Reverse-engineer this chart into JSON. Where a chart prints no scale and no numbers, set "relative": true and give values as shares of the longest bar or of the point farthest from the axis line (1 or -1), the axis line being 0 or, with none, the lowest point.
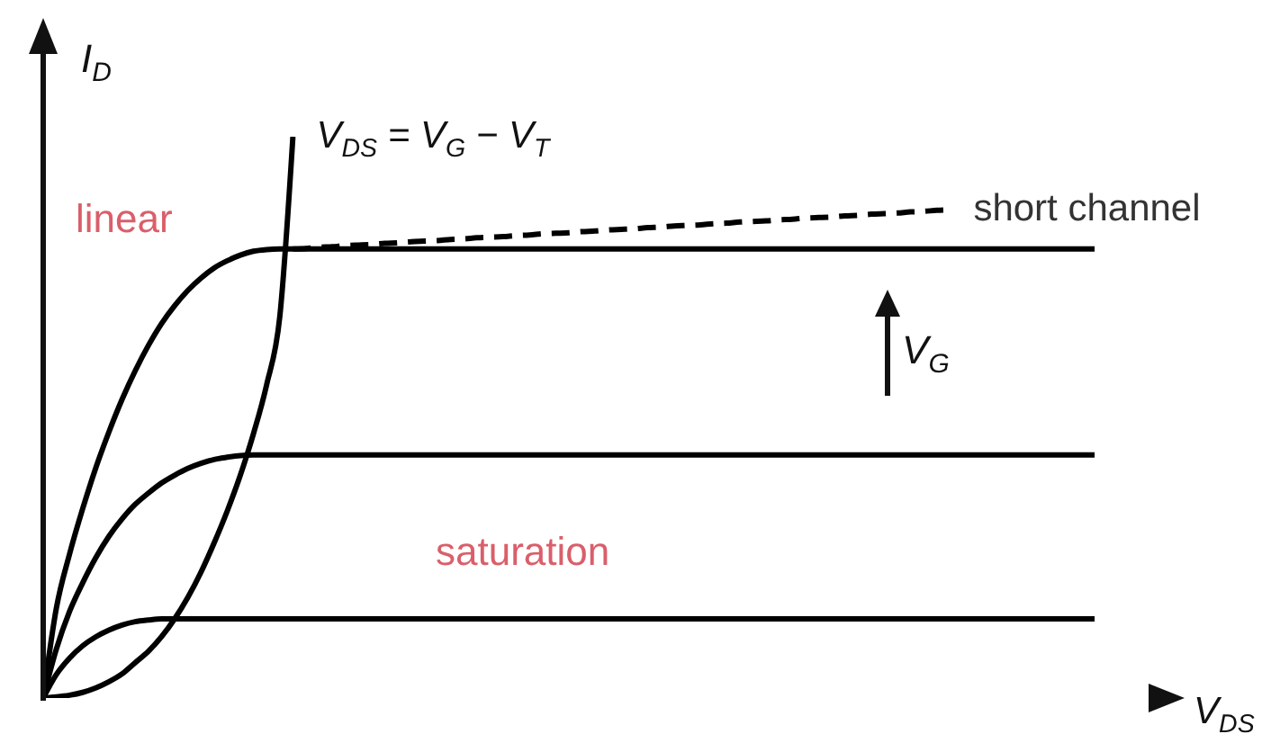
{
  "chart_data": {
    "type": "line",
    "relative": true,
    "marker": "none",
    "xlabel": "V$_{DS}$",
    "ylabel": "I$_{D}$",
    "annotations": [
      "linear",
      "V$_{G}$",
      "saturation"
    ],
    "categories": [
      null,
      null,
      null,
      null,
      null,
      null,
      null,
      null,
      null,
      null,
      null,
      null,
      null,
      null,
      null,
      null,
      null,
      null,
      null,
      null,
      null,
      null,
      null,
      null,
      null,
      null,
      null,
      null,
      null,
      null,
      null,
      null,
      null,
      null,
      null,
      null,
      null,
      null,
      null,
      null,
      null,
      null,
      null,
      null,
      null,
      null,
      null,
      null,
      null,
      null,
      null,
      null,
      null,
      null,
      null,
      null,
      null,
      null,
      null,
      null,
      null,
      null,
      null,
      null,
      null,
      null,
      null,
      null,
      null,
      null,
      null,
      null,
      null,
      null,
      null,
      null,
      null,
      null,
      null,
      null,
      null
    ],
    "series": [
      {
        "color": "#000000",
        "values": [
          0,
          0.042,
          0.071,
          0.093,
          0.109,
          0.121,
          0.13,
          0.136,
          0.139,
          0.141,
          0.141,
          0.141,
          0.141,
          0.141,
          0.141,
          0.141,
          0.141,
          0.141,
          0.141,
          0.141,
          0.141,
          0.141,
          0.141,
          0.141,
          0.141,
          0.141,
          0.141,
          0.141,
          0.141,
          0.141,
          0.141,
          0.141,
          0.141,
          0.141,
          0.141,
          0.141,
          0.141,
          0.141,
          0.141,
          0.141,
          0.141,
          0.141,
          0.141,
          0.141,
          0.141,
          0.141,
          0.141,
          0.141,
          0.141,
          0.141,
          0.141,
          0.141,
          0.141,
          0.141,
          0.141,
          0.141,
          0.141,
          0.141,
          0.141,
          0.141,
          0.141,
          0.141,
          0.141,
          0.141,
          0.141,
          0.141,
          0.141,
          0.141,
          0.141,
          0.141,
          0.141,
          0.141,
          0.141,
          0.141,
          0.141,
          0.141,
          0.141,
          0.141,
          0.141,
          0.141,
          0.141
        ]
      },
      {
        "color": "#000000",
        "values": [
          0,
          0.087,
          0.154,
          0.205,
          0.25,
          0.288,
          0.319,
          0.345,
          0.365,
          0.383,
          0.397,
          0.409,
          0.418,
          0.425,
          0.429,
          0.432,
          0.433,
          0.433,
          0.433,
          0.433,
          0.433,
          0.433,
          0.433,
          0.433,
          0.433,
          0.433,
          0.433,
          0.433,
          0.433,
          0.433,
          0.433,
          0.433,
          0.433,
          0.433,
          0.433,
          0.433,
          0.433,
          0.433,
          0.433,
          0.433,
          0.433,
          0.433,
          0.433,
          0.433,
          0.433,
          0.433,
          0.433,
          0.433,
          0.433,
          0.433,
          0.433,
          0.433,
          0.433,
          0.433,
          0.433,
          0.433,
          0.433,
          0.433,
          0.433,
          0.433,
          0.433,
          0.433,
          0.433,
          0.433,
          0.433,
          0.433,
          0.433,
          0.433,
          0.433,
          0.433,
          0.433,
          0.433,
          0.433,
          0.433,
          0.433,
          0.433,
          0.433,
          0.433,
          0.433,
          0.433,
          0.433
        ]
      },
      {
        "color": "#000000",
        "values": [
          0,
          0.16,
          0.256,
          0.337,
          0.41,
          0.474,
          0.532,
          0.583,
          0.628,
          0.667,
          0.699,
          0.726,
          0.748,
          0.766,
          0.779,
          0.789,
          0.796,
          0.799,
          0.8,
          0.8,
          0.8,
          0.8,
          0.8,
          0.8,
          0.8,
          0.8,
          0.8,
          0.8,
          0.8,
          0.8,
          0.8,
          0.8,
          0.8,
          0.8,
          0.8,
          0.8,
          0.8,
          0.8,
          0.8,
          0.8,
          0.8,
          0.8,
          0.8,
          0.8,
          0.8,
          0.8,
          0.8,
          0.8,
          0.8,
          0.8,
          0.8,
          0.8,
          0.8,
          0.8,
          0.8,
          0.8,
          0.8,
          0.8,
          0.8,
          0.8,
          0.8,
          0.8,
          0.8,
          0.8,
          0.8,
          0.8,
          0.8,
          0.8,
          0.8,
          0.8,
          0.8,
          0.8,
          0.8,
          0.8,
          0.8,
          0.8,
          0.8,
          0.8,
          0.8,
          0.8,
          0.8
        ]
      },
      {
        "name": "V$_{DS}$ = V$_{G}$ − V$_{T}$",
        "color": "#000000",
        "values": [
          0,
          0.002,
          0.005,
          0.01,
          0.018,
          0.029,
          0.043,
          0.063,
          0.083,
          0.109,
          0.141,
          0.179,
          0.224,
          0.276,
          0.333,
          0.397,
          0.471,
          0.558,
          0.679,
          1,
          null,
          null,
          null,
          null,
          null,
          null,
          null,
          null,
          null,
          null,
          null,
          null,
          null,
          null,
          null,
          null,
          null,
          null,
          null,
          null,
          null,
          null,
          null,
          null,
          null,
          null,
          null,
          null,
          null,
          null,
          null,
          null,
          null,
          null,
          null,
          null,
          null,
          null,
          null,
          null,
          null,
          null,
          null,
          null,
          null,
          null,
          null,
          null,
          null,
          null,
          null,
          null,
          null,
          null,
          null,
          null,
          null,
          null,
          null,
          null,
          null
        ]
      },
      {
        "name": "short channel",
        "color": "#000000",
        "line_style": "dashed",
        "values": [
          null,
          null,
          null,
          null,
          null,
          null,
          null,
          null,
          null,
          null,
          null,
          null,
          null,
          null,
          null,
          null,
          null,
          null,
          null,
          0.8,
          0.801,
          0.803,
          0.804,
          0.806,
          0.807,
          0.808,
          0.81,
          0.811,
          0.813,
          0.814,
          0.815,
          0.817,
          0.818,
          0.82,
          0.821,
          0.822,
          0.824,
          0.825,
          0.827,
          0.828,
          0.829,
          0.831,
          0.832,
          0.834,
          0.835,
          0.836,
          0.838,
          0.839,
          0.841,
          0.842,
          0.843,
          0.845,
          0.846,
          0.848,
          0.849,
          0.85,
          0.852,
          0.853,
          0.855,
          0.856,
          0.857,
          0.859,
          0.86,
          0.862,
          0.863,
          0.864,
          0.866,
          0.867,
          0.869,
          0.87,
          null,
          null,
          null,
          null,
          null,
          null,
          null,
          null,
          null,
          null,
          null
        ]
      }
    ]
  }
}
